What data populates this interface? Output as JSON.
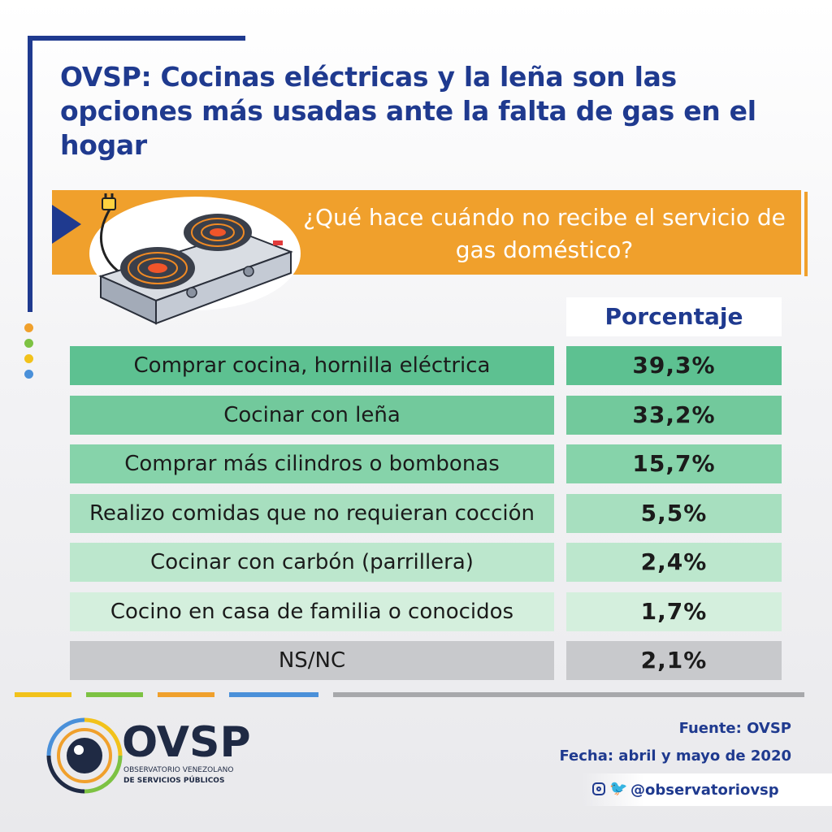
{
  "header": {
    "title": "OVSP: Cocinas eléctricas y la leña son las opciones más usadas ante la falta de gas en el hogar",
    "question": "¿Qué hace cuándo no recibe el servicio de gas doméstico?",
    "column_header": "Porcentaje"
  },
  "colors": {
    "title_blue": "#1f3a8f",
    "banner_orange": "#f0a02c",
    "green_shades": [
      "#5dc191",
      "#72c99c",
      "#86d3aa",
      "#a7dfbf",
      "#bce7cd",
      "#d4efdd"
    ],
    "nsnc_gray": "#c8c9cc"
  },
  "chart_data": {
    "type": "table",
    "title": "¿Qué hace cuándo no recibe el servicio de gas doméstico?",
    "columns": [
      "Porcentaje"
    ],
    "rows": [
      {
        "label": "Comprar cocina, hornilla eléctrica",
        "value": "39,3%",
        "percent": 39.3
      },
      {
        "label": "Cocinar con leña",
        "value": "33,2%",
        "percent": 33.2
      },
      {
        "label": "Comprar más cilindros o bombonas",
        "value": "15,7%",
        "percent": 15.7
      },
      {
        "label": "Realizo comidas que no requieran cocción",
        "value": "5,5%",
        "percent": 5.5
      },
      {
        "label": "Cocinar con carbón (parrillera)",
        "value": "2,4%",
        "percent": 2.4
      },
      {
        "label": "Cocino en casa de familia o conocidos",
        "value": "1,7%",
        "percent": 1.7
      },
      {
        "label": "NS/NC",
        "value": "2,1%",
        "percent": 2.1
      }
    ]
  },
  "footer": {
    "logo_name": "OVSP",
    "logo_sub_line1": "OBSERVATORIO VENEZOLANO",
    "logo_sub_line2": "DE SERVICIOS PÚBLICOS",
    "source": "Fuente: OVSP",
    "date": "Fecha: abril y mayo de 2020",
    "social_handle": "@observatoriovsp",
    "icons": [
      "instagram-icon",
      "twitter-icon",
      "ovsp-eye-logo-icon",
      "electric-stove-icon"
    ],
    "divider_colors": [
      "#f2c21b",
      "#7dc243",
      "#f0a02c",
      "#4a90d9",
      "#a7a8ab"
    ]
  }
}
